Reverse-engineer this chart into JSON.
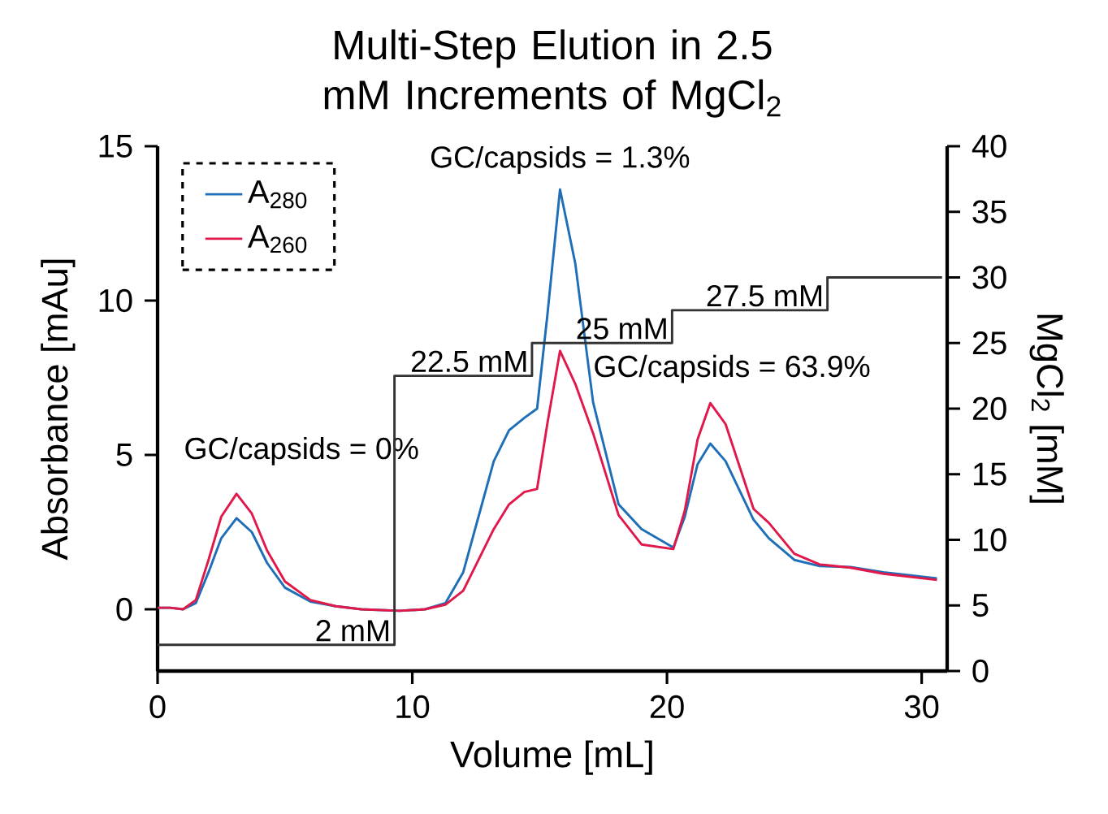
{
  "chart_data": {
    "type": "line",
    "title": "Multi-Step Elution in 2.5 mM Increments of MgCl$_{2}$",
    "xlabel": "Volume [mL]",
    "ylabel": "Absorbance [mAu]",
    "y2label": "MgCl$_{2}$ [mM]",
    "xlim": [
      0,
      31
    ],
    "xticks": [
      0,
      10,
      20,
      30
    ],
    "ylim": [
      -2,
      15
    ],
    "yticks": [
      0,
      5,
      10,
      15
    ],
    "y2lim": [
      0,
      40
    ],
    "y2ticks": [
      0,
      5,
      10,
      15,
      20,
      25,
      30,
      35,
      40
    ],
    "legend": "top left",
    "grid": false,
    "series": [
      {
        "name": "A$_{280}$",
        "color": "#1f6fb8",
        "x": [
          0,
          0.5,
          1.0,
          1.5,
          2.0,
          2.5,
          3.1,
          3.7,
          4.3,
          5.0,
          6.0,
          7.0,
          8.0,
          9.5,
          10.5,
          11.3,
          12.0,
          12.6,
          13.2,
          13.8,
          14.4,
          14.9,
          15.3,
          15.8,
          16.4,
          17.1,
          18.1,
          19.0,
          20.25,
          20.7,
          21.2,
          21.7,
          22.3,
          23.4,
          24.0,
          25.0,
          26.0,
          27.2,
          28.5,
          30.6
        ],
        "values": [
          0.05,
          0.05,
          0.0,
          0.2,
          1.2,
          2.3,
          2.95,
          2.5,
          1.5,
          0.7,
          0.25,
          0.1,
          0.0,
          -0.05,
          0.0,
          0.2,
          1.2,
          3.0,
          4.8,
          5.8,
          6.2,
          6.5,
          9.5,
          13.6,
          11.2,
          6.7,
          3.4,
          2.6,
          2.0,
          3.0,
          4.7,
          5.37,
          4.8,
          2.9,
          2.3,
          1.6,
          1.4,
          1.37,
          1.2,
          1.0
        ]
      },
      {
        "name": "A$_{260}$",
        "color": "#e0194a",
        "x": [
          0,
          0.5,
          1.0,
          1.5,
          2.0,
          2.5,
          3.1,
          3.7,
          4.3,
          5.0,
          6.0,
          7.0,
          8.0,
          9.5,
          10.5,
          11.3,
          12.0,
          12.6,
          13.2,
          13.8,
          14.4,
          14.9,
          15.3,
          15.8,
          16.4,
          17.1,
          18.1,
          19.0,
          20.25,
          20.7,
          21.2,
          21.7,
          22.3,
          23.4,
          24.0,
          25.0,
          26.0,
          27.2,
          28.5,
          30.6
        ],
        "values": [
          0.05,
          0.05,
          0.0,
          0.3,
          1.6,
          3.0,
          3.74,
          3.1,
          1.9,
          0.9,
          0.3,
          0.1,
          0.0,
          -0.05,
          0.0,
          0.15,
          0.6,
          1.6,
          2.6,
          3.4,
          3.8,
          3.9,
          6.0,
          8.37,
          7.3,
          5.7,
          3.05,
          2.1,
          1.95,
          3.2,
          5.5,
          6.68,
          6.0,
          3.25,
          2.8,
          1.8,
          1.45,
          1.35,
          1.15,
          0.95
        ]
      },
      {
        "type": "step",
        "axis": "y2",
        "color": "#333333",
        "x": [
          0,
          9.3,
          14.7,
          20.2,
          26.3,
          30.8
        ],
        "values": [
          2,
          2,
          22.5,
          25,
          27.5,
          30
        ],
        "value_labels": [
          null,
          "2 mM",
          "22.5 mM",
          "25 mM",
          "27.5 mM",
          null
        ]
      }
    ],
    "annotations": [
      {
        "text": "GC/capsids = 0%",
        "x": 3.1,
        "y": 3.74
      },
      {
        "text": "GC/capsids = 1.3%",
        "x": 15.8,
        "y": 13.6
      },
      {
        "text": "GC/capsids = 63.9%",
        "x": 21.7,
        "y": 6.68
      }
    ]
  }
}
